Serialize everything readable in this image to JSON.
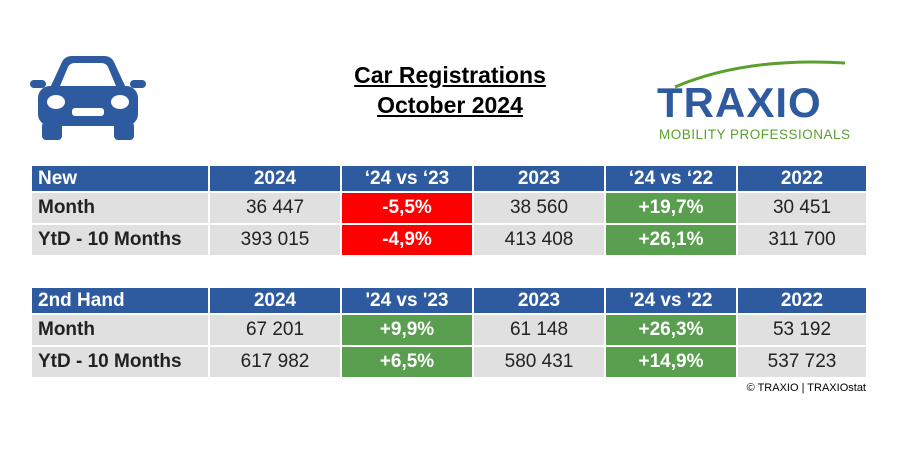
{
  "header": {
    "title_line1": "Car Registrations",
    "title_line2": "October 2024"
  },
  "logo": {
    "name": "TRAXIO",
    "tagline": "MOBILITY PROFESSIONALS"
  },
  "tables": [
    {
      "columns": [
        "New",
        "2024",
        "‘24 vs ‘23",
        "2023",
        "‘24 vs ‘22",
        "2022"
      ],
      "rows": [
        [
          "Month",
          "36 447",
          "-5,5%",
          "38 560",
          "+19,7%",
          "30 451"
        ],
        [
          "YtD - 10 Months",
          "393 015",
          "-4,9%",
          "413 408",
          "+26,1%",
          "311 700"
        ]
      ]
    },
    {
      "columns": [
        "2nd Hand",
        "2024",
        "'24 vs '23",
        "2023",
        "'24 vs '22",
        "2022"
      ],
      "rows": [
        [
          "Month",
          "67 201",
          "+9,9%",
          "61 148",
          "+26,3%",
          "53 192"
        ],
        [
          "YtD - 10 Months",
          "617 982",
          "+6,5%",
          "580 431",
          "+14,9%",
          "537 723"
        ]
      ]
    }
  ],
  "copyright": "© TRAXIO | TRAXIOstat"
}
